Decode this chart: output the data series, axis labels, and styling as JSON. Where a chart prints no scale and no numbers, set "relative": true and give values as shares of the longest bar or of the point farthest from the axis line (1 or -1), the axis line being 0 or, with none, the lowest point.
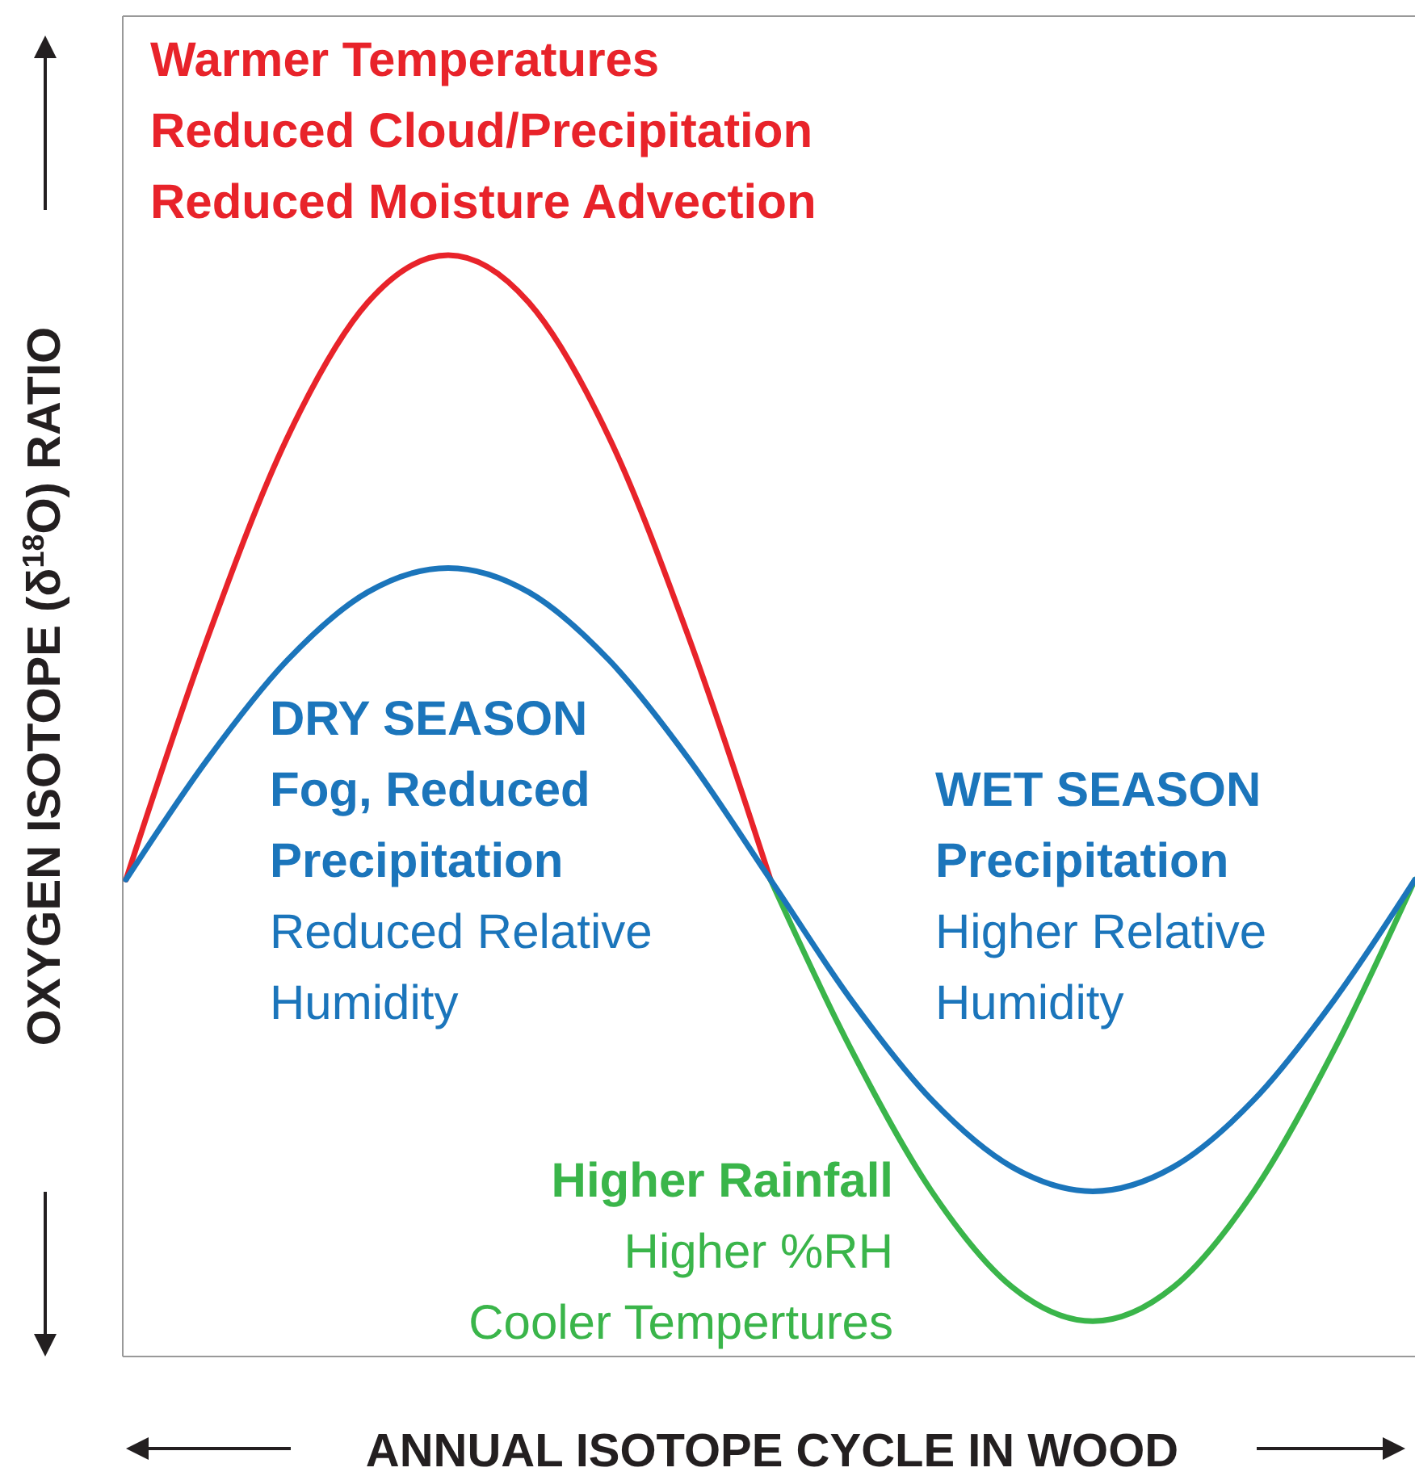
{
  "chart_data": {
    "type": "line",
    "relative": true,
    "xlabel": "ANNUAL ISOTOPE CYCLE IN WOOD",
    "ylabel": "OXYGEN ISOTOPE (δ$^{18}$O) RATIO",
    "categories": [
      null,
      null,
      null,
      null,
      null,
      null,
      null,
      null,
      null,
      null,
      null,
      null,
      null,
      null,
      null,
      null,
      null
    ],
    "series": [
      {
        "color": "#e8232a",
        "values": [
          0.433,
          0.65,
          0.834,
          0.957,
          1,
          0.957,
          0.834,
          0.65,
          0.433,
          null,
          null,
          null,
          null,
          null,
          null,
          null,
          null
        ]
      },
      {
        "color": "#3ab54a",
        "values": [
          null,
          null,
          null,
          null,
          null,
          null,
          null,
          null,
          0.433,
          0.279,
          0.15,
          0.063,
          0.032,
          0.063,
          0.15,
          0.279,
          0.433
        ]
      },
      {
        "color": "#1b75bb",
        "values": [
          0.433,
          0.541,
          0.632,
          0.694,
          0.716,
          0.694,
          0.632,
          0.541,
          0.433,
          0.324,
          0.233,
          0.172,
          0.15,
          0.172,
          0.233,
          0.324,
          0.433
        ]
      }
    ],
    "annotations": [
      "Warmer Temperatures",
      "Reduced Cloud/Precipitation",
      "Reduced Moisture Advection",
      "DRY SEASON",
      "Fog, Reduced",
      "Precipitation",
      "Reduced Relative",
      "Humidity",
      "WET SEASON",
      "Precipitation",
      "Higher Relative",
      "Humidity",
      "Higher Rainfall",
      "Higher %RH",
      "Cooler Tempertures"
    ],
    "marker": "none"
  }
}
